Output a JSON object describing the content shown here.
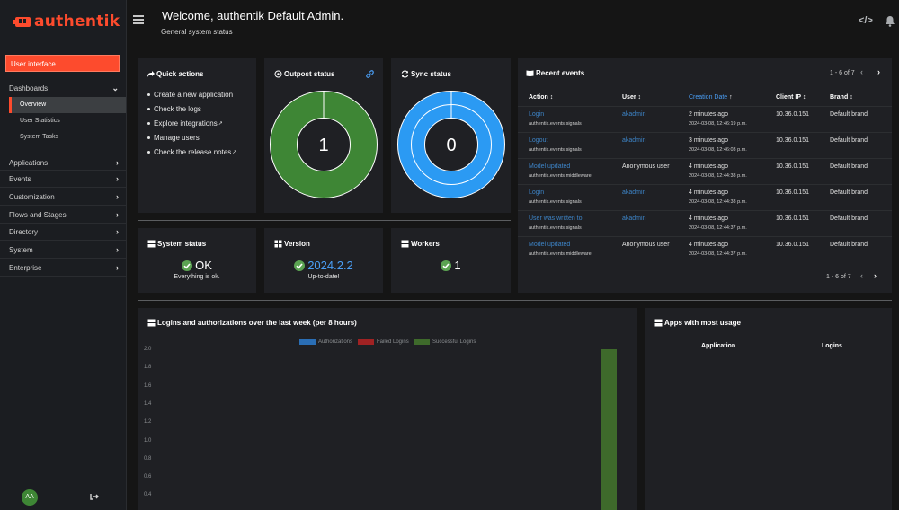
{
  "sidebar": {
    "brand": "authentik",
    "user_interface": "User interface",
    "dashboards": "Dashboards",
    "sub_items": [
      "Overview",
      "User Statistics",
      "System Tasks"
    ],
    "groups": [
      "Applications",
      "Events",
      "Customization",
      "Flows and Stages",
      "Directory",
      "System",
      "Enterprise"
    ],
    "avatar_initials": "AA"
  },
  "header": {
    "title": "Welcome, authentik Default Admin.",
    "subtitle": "General system status"
  },
  "quick_actions": {
    "title": "Quick actions",
    "items": [
      "Create a new application",
      "Check the logs",
      "Explore integrations",
      "Manage users",
      "Check the release notes"
    ]
  },
  "outpost": {
    "title": "Outpost status",
    "value": "1",
    "color": "#3e8635"
  },
  "sync": {
    "title": "Sync status",
    "value": "0",
    "color": "#2b9af3"
  },
  "system_status": {
    "title": "System status",
    "value": "OK",
    "sub": "Everything is ok."
  },
  "version": {
    "title": "Version",
    "value": "2024.2.2",
    "sub": "Up-to-date!"
  },
  "workers": {
    "title": "Workers",
    "value": "1"
  },
  "recent_events": {
    "title": "Recent events",
    "pagination": "1 - 6 of 7",
    "columns": [
      "Action",
      "User",
      "Creation Date",
      "Client IP",
      "Brand"
    ],
    "rows": [
      {
        "action": "Login",
        "app": "authentik.events.signals",
        "user": "akadmin",
        "user_link": true,
        "created": "2 minutes ago",
        "created_ts": "2024-03-08, 12:46:19 p.m.",
        "ip": "10.36.0.151",
        "brand": "Default brand"
      },
      {
        "action": "Logout",
        "app": "authentik.events.signals",
        "user": "akadmin",
        "user_link": true,
        "created": "3 minutes ago",
        "created_ts": "2024-03-08, 12:46:03 p.m.",
        "ip": "10.36.0.151",
        "brand": "Default brand"
      },
      {
        "action": "Model updated",
        "app": "authentik.events.middleware",
        "user": "Anonymous user",
        "user_link": false,
        "created": "4 minutes ago",
        "created_ts": "2024-03-08, 12:44:38 p.m.",
        "ip": "10.36.0.151",
        "brand": "Default brand"
      },
      {
        "action": "Login",
        "app": "authentik.events.signals",
        "user": "akadmin",
        "user_link": true,
        "created": "4 minutes ago",
        "created_ts": "2024-03-08, 12:44:38 p.m.",
        "ip": "10.36.0.151",
        "brand": "Default brand"
      },
      {
        "action": "User was written to",
        "app": "authentik.events.signals",
        "user": "akadmin",
        "user_link": true,
        "created": "4 minutes ago",
        "created_ts": "2024-03-08, 12:44:37 p.m.",
        "ip": "10.36.0.151",
        "brand": "Default brand"
      },
      {
        "action": "Model updated",
        "app": "authentik.events.middleware",
        "user": "Anonymous user",
        "user_link": false,
        "created": "4 minutes ago",
        "created_ts": "2024-03-08, 12:44:37 p.m.",
        "ip": "10.36.0.151",
        "brand": "Default brand"
      }
    ]
  },
  "logins_chart": {
    "title": "Logins and authorizations over the last week (per 8 hours)"
  },
  "chart_data": {
    "type": "bar",
    "legend": [
      "Authorizations",
      "Failed Logins",
      "Successful Logins"
    ],
    "legend_colors": [
      "#2a6eb5",
      "#a02223",
      "#3e6a2b"
    ],
    "yticks": [
      "2.0",
      "1.8",
      "1.6",
      "1.4",
      "1.2",
      "1.0",
      "0.8",
      "0.6",
      "0.4"
    ],
    "ylim": [
      0,
      2.0
    ],
    "series": [
      {
        "name": "Successful Logins",
        "values": [
          2
        ]
      }
    ],
    "legend_placement": "top-center"
  },
  "apps_usage": {
    "title": "Apps with most usage",
    "columns": [
      "Application",
      "Logins"
    ]
  }
}
